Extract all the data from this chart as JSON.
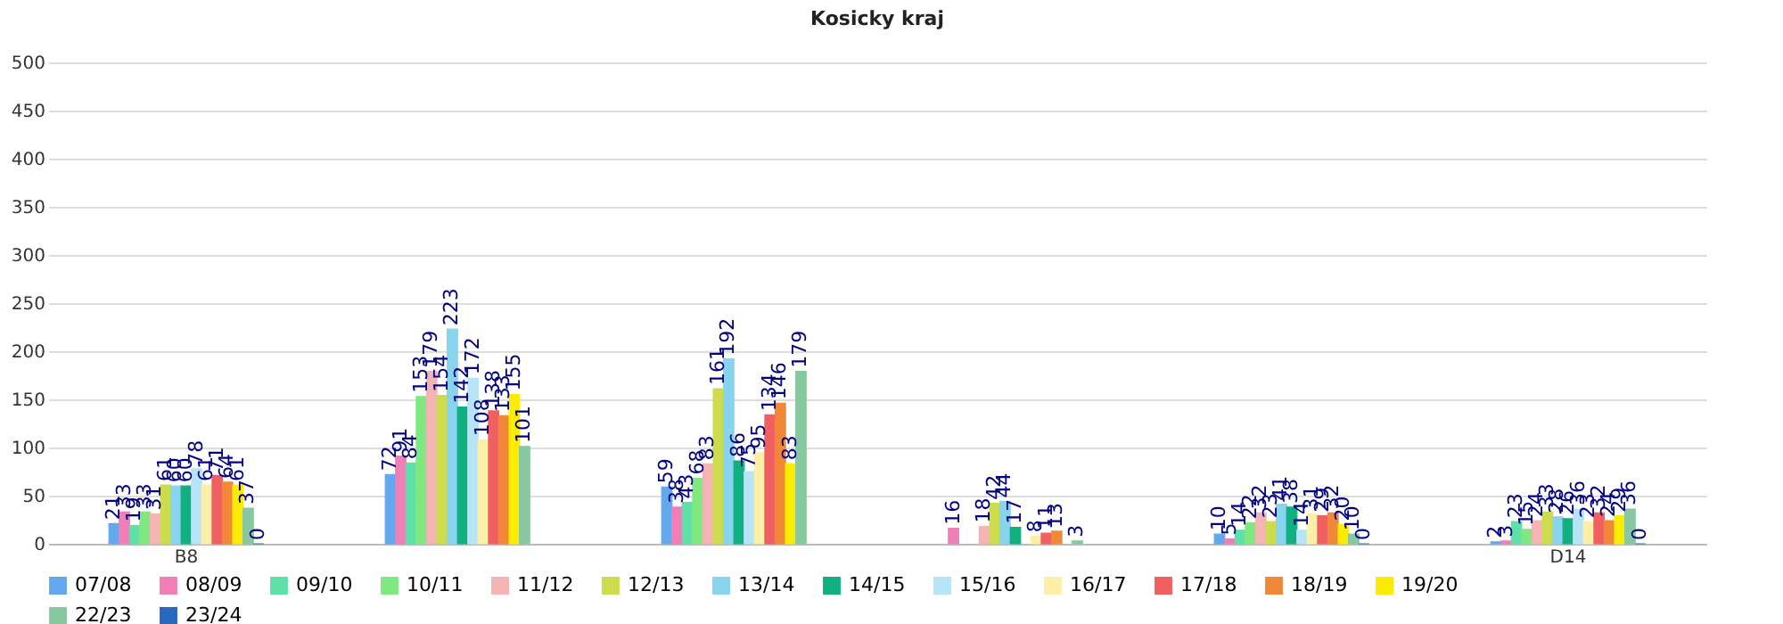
{
  "chart_data": {
    "type": "bar",
    "title": "Kosicky kraj",
    "categories": [
      "B8",
      null,
      null,
      null,
      null,
      "D14"
    ],
    "series": [
      {
        "name": "07/08",
        "color": "#63a8ec",
        "values": [
          21,
          72,
          59,
          null,
          10,
          2
        ]
      },
      {
        "name": "08/09",
        "color": "#f07fb8",
        "values": [
          33,
          91,
          38,
          16,
          5,
          3
        ]
      },
      {
        "name": "09/10",
        "color": "#5ee0a8",
        "values": [
          19,
          84,
          43,
          null,
          14,
          23
        ]
      },
      {
        "name": "10/11",
        "color": "#80e880",
        "values": [
          33,
          153,
          68,
          null,
          22,
          15
        ]
      },
      {
        "name": "11/12",
        "color": "#f4b4b4",
        "values": [
          31,
          179,
          83,
          18,
          32,
          24
        ]
      },
      {
        "name": "12/13",
        "color": "#cddc4c",
        "values": [
          61,
          154,
          161,
          42,
          23,
          33
        ]
      },
      {
        "name": "13/14",
        "color": "#88d4ee",
        "values": [
          60,
          223,
          192,
          44,
          41,
          28
        ]
      },
      {
        "name": "14/15",
        "color": "#10b080",
        "values": [
          60,
          142,
          86,
          17,
          38,
          26
        ]
      },
      {
        "name": "15/16",
        "color": "#b8e4f8",
        "values": [
          78,
          172,
          75,
          null,
          14,
          36
        ]
      },
      {
        "name": "16/17",
        "color": "#fcf0a8",
        "values": [
          61,
          108,
          95,
          8,
          31,
          23
        ]
      },
      {
        "name": "17/18",
        "color": "#f06060",
        "values": [
          71,
          138,
          134,
          11,
          29,
          32
        ]
      },
      {
        "name": "18/19",
        "color": "#f08838",
        "values": [
          64,
          133,
          146,
          13,
          32,
          24
        ]
      },
      {
        "name": "19/20",
        "color": "#fcec00",
        "values": [
          61,
          155,
          83,
          null,
          20,
          29
        ]
      },
      {
        "name": "22/23",
        "color": "#88c8a0",
        "values": [
          37,
          101,
          179,
          3,
          10,
          36
        ]
      },
      {
        "name": "23/24",
        "color": "#2868c0",
        "values": [
          0,
          null,
          null,
          null,
          0,
          0
        ]
      }
    ],
    "ylim": [
      0,
      500
    ],
    "yticks": [
      0,
      50,
      100,
      150,
      200,
      250,
      300,
      350,
      400,
      450,
      500
    ],
    "grid": true,
    "legend": "bottom",
    "data_labels": true
  }
}
